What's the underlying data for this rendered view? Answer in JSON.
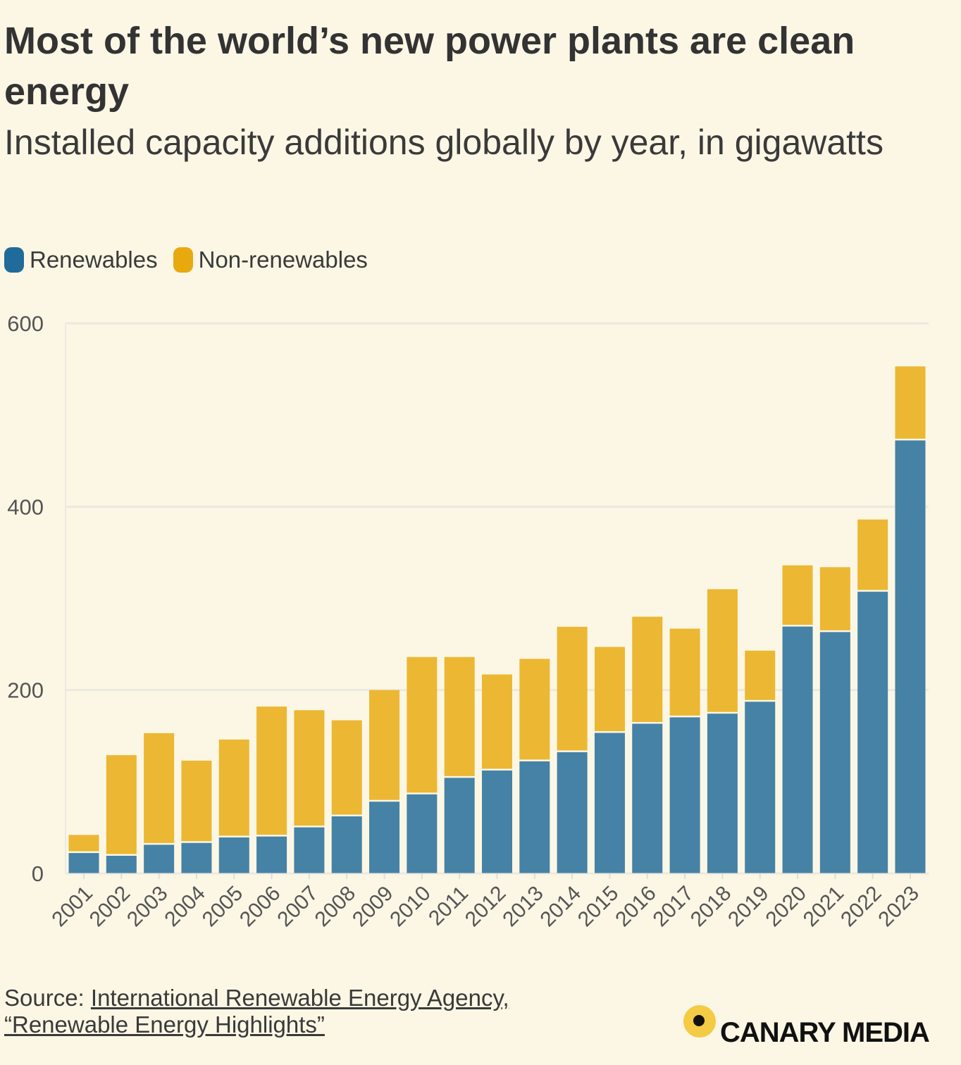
{
  "title": "Most of the world’s new power plants are clean energy",
  "subtitle": "Installed capacity additions globally by year, in gigawatts",
  "source": {
    "label": "Source:",
    "link1": "International Renewable Energy Agency,",
    "link2": "“Renewable Energy Highlights”"
  },
  "logo_text": "CANARY MEDIA",
  "chart_data": {
    "type": "bar",
    "stacked": true,
    "title": "Most of the world’s new power plants are clean energy",
    "subtitle": "Installed capacity additions globally by year, in gigawatts",
    "xlabel": "",
    "ylabel": "",
    "ylim": [
      0,
      600
    ],
    "yticks": [
      0,
      200,
      400,
      600
    ],
    "grid": true,
    "legend_position": "top-left",
    "categories": [
      "2001",
      "2002",
      "2003",
      "2004",
      "2005",
      "2006",
      "2007",
      "2008",
      "2009",
      "2010",
      "2011",
      "2012",
      "2013",
      "2014",
      "2015",
      "2016",
      "2017",
      "2018",
      "2019",
      "2020",
      "2021",
      "2022",
      "2023"
    ],
    "series": [
      {
        "name": "Renewables",
        "color": "#4582a6",
        "legend_color": "#1f6b9b",
        "values": [
          23,
          20,
          32,
          34,
          40,
          41,
          51,
          63,
          79,
          87,
          105,
          113,
          123,
          133,
          154,
          164,
          171,
          175,
          188,
          270,
          264,
          308,
          473
        ]
      },
      {
        "name": "Non-renewables",
        "color": "#ecb732",
        "legend_color": "#e8a90f",
        "values": [
          19,
          109,
          121,
          89,
          106,
          141,
          127,
          104,
          121,
          149,
          131,
          104,
          111,
          136,
          93,
          116,
          96,
          135,
          55,
          66,
          70,
          78,
          80
        ]
      }
    ]
  }
}
